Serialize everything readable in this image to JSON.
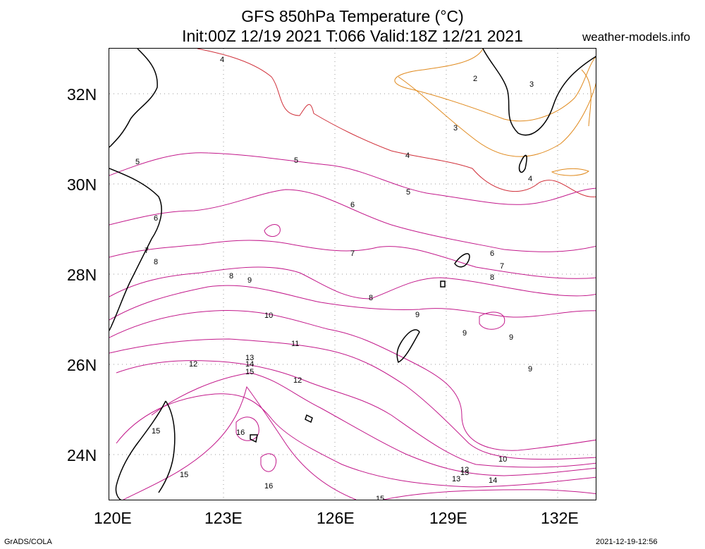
{
  "title_line1": "GFS 850hPa Temperature (°C)",
  "title_line2": "Init:00Z 12/19 2021 T:066 Valid:18Z 12/21 2021",
  "brand": "weather-models.info",
  "footer_left": "GrADS/COLA",
  "footer_right": "2021-12-19-12:56",
  "lat_labels": [
    "32N",
    "30N",
    "28N",
    "26N",
    "24N"
  ],
  "lon_labels": [
    "120E",
    "123E",
    "126E",
    "129E",
    "132E"
  ],
  "contour_labels": [
    "2",
    "3",
    "4",
    "5",
    "6",
    "7",
    "8",
    "9",
    "10",
    "11",
    "12",
    "13",
    "14",
    "15",
    "16"
  ],
  "colors": {
    "cold": "#e08a1e",
    "mid": "#d0303a",
    "warm": "#c2188a",
    "coast": "#000000",
    "grid": "#9a9a9a"
  }
}
